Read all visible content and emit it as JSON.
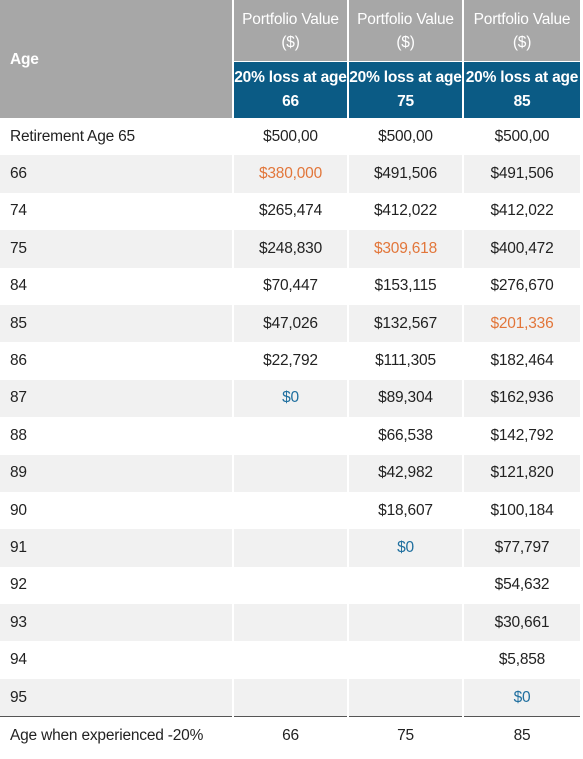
{
  "table": {
    "age_header": "Age",
    "columns": [
      {
        "title": "Portfolio Value ($)",
        "scenario": "20% loss at age 66"
      },
      {
        "title": "Portfolio Value ($)",
        "scenario": "20% loss at age 75"
      },
      {
        "title": "Portfolio Value ($)",
        "scenario": "20% loss at age 85"
      }
    ],
    "highlight_colors": {
      "loss": "#e2763a",
      "zero": "#1f6f9f"
    },
    "rows": [
      [
        "Retirement Age 65",
        "$500,00",
        "$500,00",
        "$500,00"
      ],
      [
        "66",
        {
          "text": "$380,000",
          "kind": "loss"
        },
        "$491,506",
        "$491,506"
      ],
      [
        "74",
        "$265,474",
        "$412,022",
        "$412,022"
      ],
      [
        "75",
        "$248,830",
        {
          "text": "$309,618",
          "kind": "loss"
        },
        "$400,472"
      ],
      [
        "84",
        "$70,447",
        "$153,115",
        "$276,670"
      ],
      [
        "85",
        "$47,026",
        "$132,567",
        {
          "text": "$201,336",
          "kind": "loss"
        }
      ],
      [
        "86",
        "$22,792",
        "$111,305",
        "$182,464"
      ],
      [
        "87",
        {
          "text": "$0",
          "kind": "zero"
        },
        "$89,304",
        "$162,936"
      ],
      [
        "88",
        null,
        "$66,538",
        "$142,792"
      ],
      [
        "89",
        null,
        "$42,982",
        "$121,820"
      ],
      [
        "90",
        null,
        "$18,607",
        "$100,184"
      ],
      [
        "91",
        null,
        {
          "text": "$0",
          "kind": "zero"
        },
        "$77,797"
      ],
      [
        "92",
        null,
        null,
        "$54,632"
      ],
      [
        "93",
        null,
        null,
        "$30,661"
      ],
      [
        "94",
        null,
        null,
        "$5,858"
      ],
      [
        "95",
        null,
        null,
        {
          "text": "$0",
          "kind": "zero"
        }
      ]
    ],
    "footer": [
      "Age when experienced -20%",
      "66",
      "75",
      "85"
    ]
  }
}
